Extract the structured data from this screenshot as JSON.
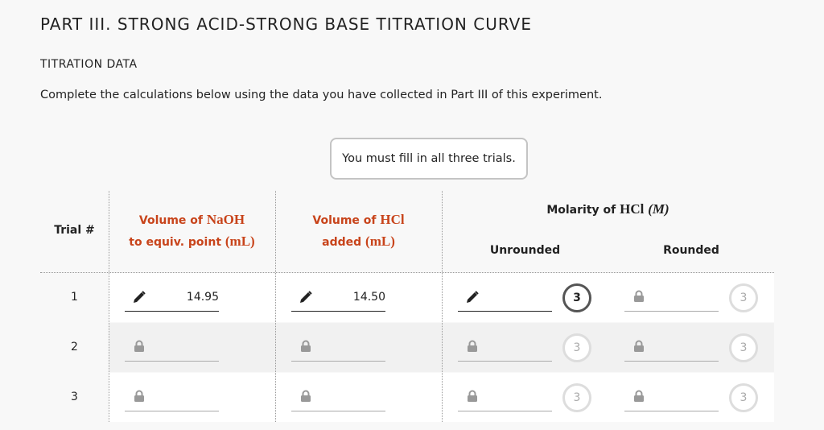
{
  "header": {
    "title": "PART III. STRONG ACID-STRONG BASE TITRATION CURVE",
    "section": "TITRATION DATA",
    "instructions": "Complete the calculations below using the data you have collected in Part III of this experiment."
  },
  "notice": "You must fill in all three trials.",
  "table": {
    "columns": {
      "trial": "Trial #",
      "naoh": {
        "line1_text": "Volume of",
        "line1_math": "NaOH",
        "line2_text": "to equiv. point",
        "line2_math": "(mL)"
      },
      "hcl": {
        "line1_text": "Volume of",
        "line1_math": "HCl",
        "line2_text": "added",
        "line2_math": "(mL)"
      },
      "molarity": {
        "text": "Molarity of",
        "math": "HCl",
        "unit": "(M)"
      },
      "unrounded": "Unrounded",
      "rounded": "Rounded"
    },
    "rows": [
      {
        "trial": "1",
        "naoh": "14.95",
        "hcl": "14.50",
        "unrounded_badge": "3",
        "rounded_badge": "3"
      },
      {
        "trial": "2",
        "unrounded_badge": "3",
        "rounded_badge": "3"
      },
      {
        "trial": "3",
        "unrounded_badge": "3",
        "rounded_badge": "3"
      }
    ]
  }
}
